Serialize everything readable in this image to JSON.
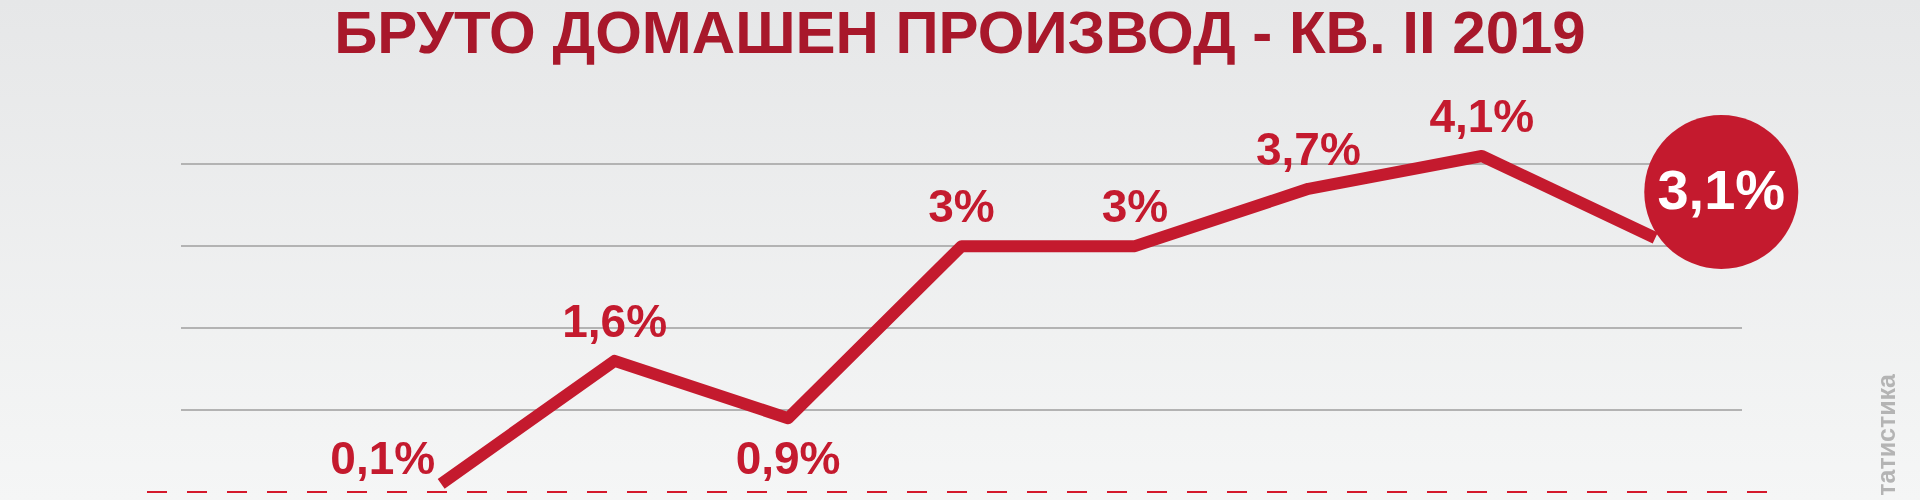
{
  "chart_data": {
    "type": "line",
    "title": "БРУТО ДОМАШЕН ПРОИЗВОД - КВ. II 2019",
    "annotations": [
      "татистика"
    ],
    "categories": [
      null,
      null,
      null,
      null,
      null,
      null,
      null,
      null,
      null
    ],
    "values": [
      null,
      0.1,
      1.6,
      0.9,
      3,
      3,
      3.7,
      4.1,
      3.1
    ],
    "value_labels": [
      null,
      "0,1%",
      "1,6%",
      "0,9%",
      "3%",
      "3%",
      "3,7%",
      "4,1%",
      "3,1%"
    ],
    "color": "#c41a2e",
    "yticks": [
      {
        "value": 1,
        "label": null
      },
      {
        "value": 2,
        "label": null
      },
      {
        "value": 3,
        "label": null
      },
      {
        "value": 4,
        "label": null
      }
    ],
    "grid": "y",
    "tick_labels": false,
    "marker": "none",
    "line_style": "solid",
    "ref_lines": [
      {
        "axis": "y",
        "value": 0,
        "color": "#d4192c",
        "line_style": "dashed"
      }
    ]
  }
}
